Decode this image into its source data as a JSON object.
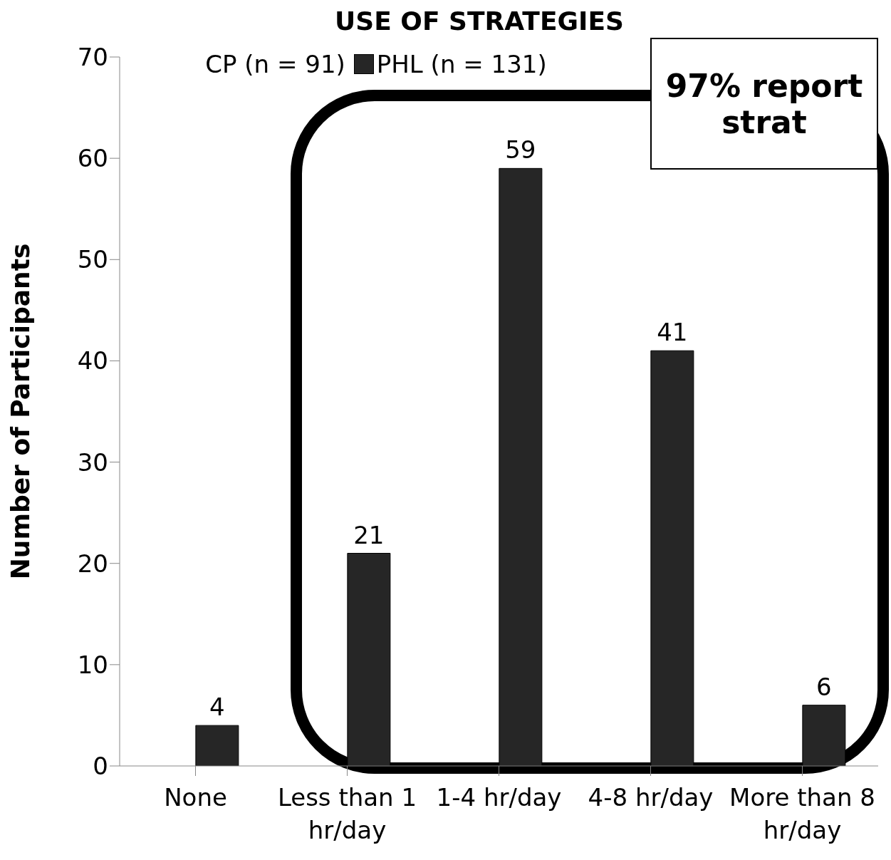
{
  "chart_data": {
    "type": "bar",
    "title": "USE OF STRATEGIES",
    "ylabel": "Number of Participants",
    "categories": [
      "None",
      "Less than 1 hr/day",
      "1-4 hr/day",
      "4-8 hr/day",
      "More than 8 hr/day"
    ],
    "series": [
      {
        "name": "CP (n = 91)",
        "values": [
          null,
          null,
          null,
          null,
          null
        ]
      },
      {
        "name": "PHL (n = 131)",
        "color": "#262626",
        "values": [
          4,
          21,
          59,
          41,
          6
        ]
      }
    ],
    "ylim": [
      0,
      70
    ],
    "yticks": [
      0,
      10,
      20,
      30,
      40,
      50,
      60,
      70
    ],
    "legend": "top",
    "data_labels": true,
    "annotations": [
      "97% report\nstrat"
    ]
  }
}
